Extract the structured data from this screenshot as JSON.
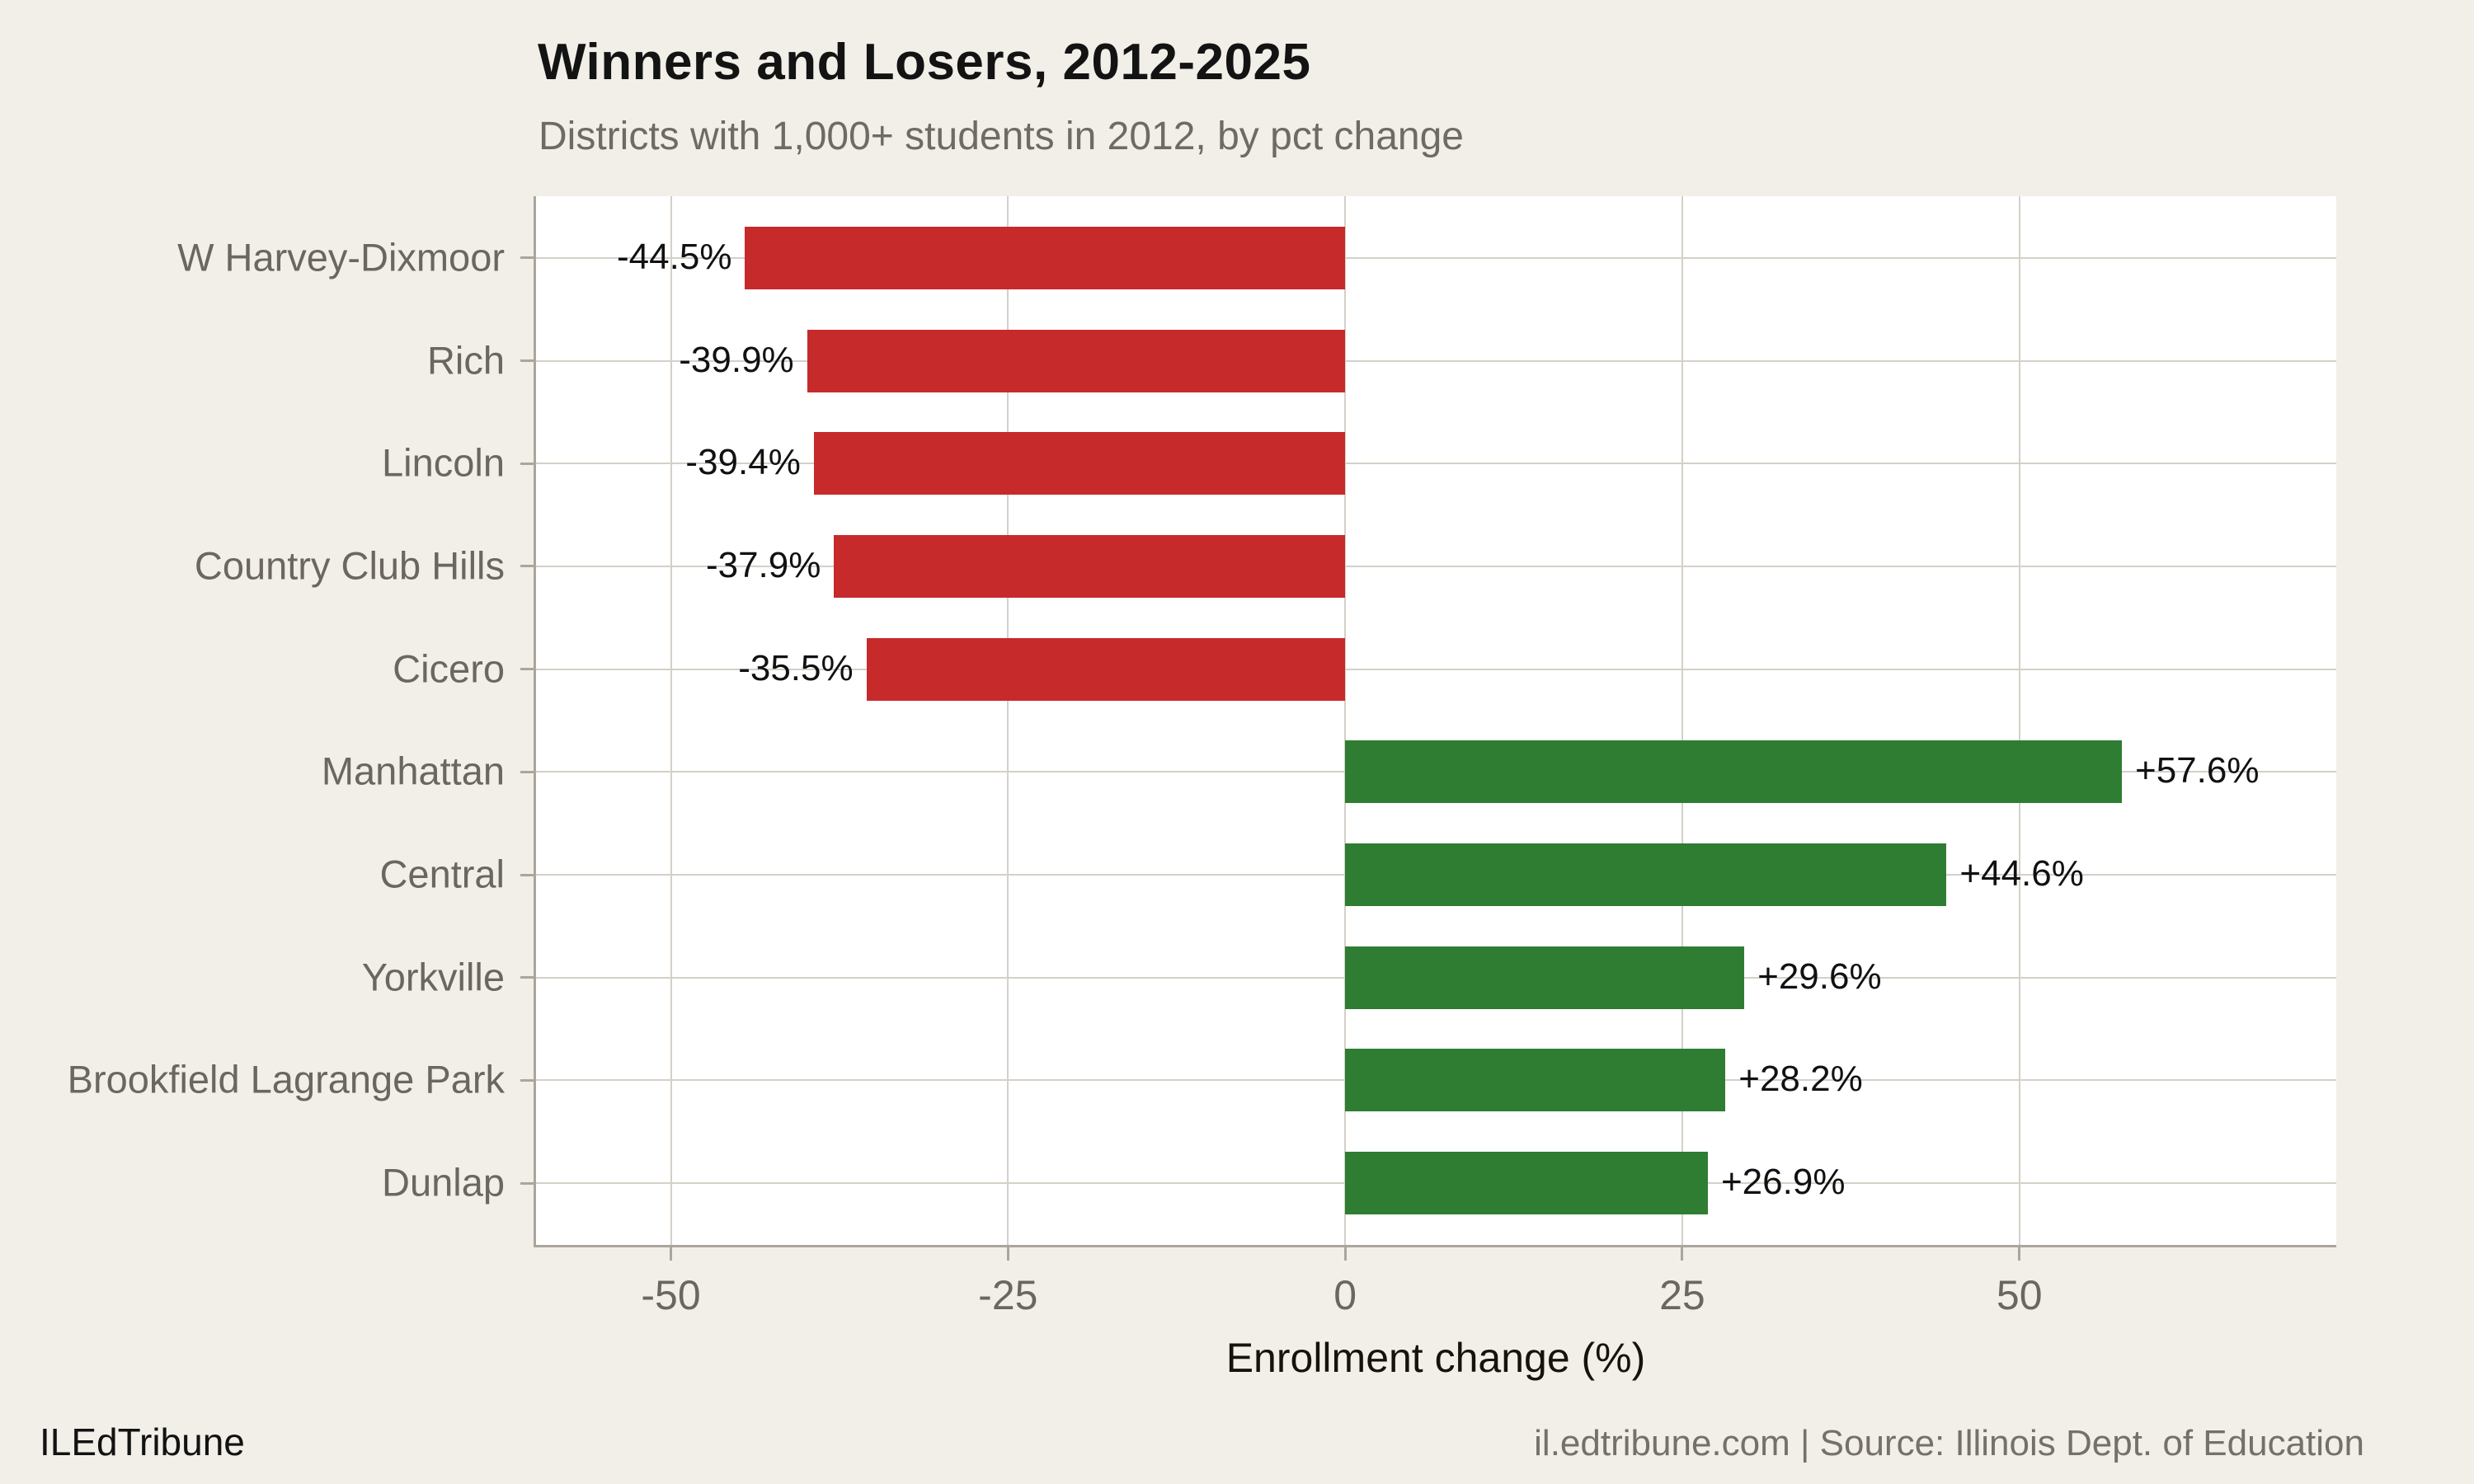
{
  "footer": {
    "brand": "ILEdTribune",
    "source": "il.edtribune.com | Source: Illinois Dept. of Education"
  },
  "chart_data": {
    "type": "bar",
    "orientation": "horizontal",
    "title": "Winners and Losers, 2012-2025",
    "subtitle": "Districts with 1,000+ students in 2012, by pct change",
    "categories": [
      "W Harvey-Dixmoor",
      "Rich",
      "Lincoln",
      "Country Club Hills",
      "Cicero",
      "Manhattan",
      "Central",
      "Yorkville",
      "Brookfield Lagrange Park",
      "Dunlap"
    ],
    "values": [
      -44.5,
      -39.9,
      -39.4,
      -37.9,
      -35.5,
      57.6,
      44.6,
      29.6,
      28.2,
      26.9
    ],
    "bar_labels": [
      "-44.5%",
      "-39.9%",
      "-39.4%",
      "-37.9%",
      "-35.5%",
      "+57.6%",
      "+44.6%",
      "+29.6%",
      "+28.2%",
      "+26.9%"
    ],
    "xlabel": "Enrollment change (%)",
    "xticks": [
      -50,
      -25,
      0,
      25,
      50
    ],
    "xlim": [
      -60,
      73.5
    ],
    "grid": "on",
    "legend": "none",
    "colors": {
      "positive": "#2E7D32",
      "negative": "#C62A2B",
      "background": "#F2EFE8",
      "panel": "#FFFFFF",
      "gridline": "#D5D0C8",
      "axis_line": "#ABA59D",
      "bar_label_text": "#111111",
      "muted_text": "#6B6661"
    }
  }
}
